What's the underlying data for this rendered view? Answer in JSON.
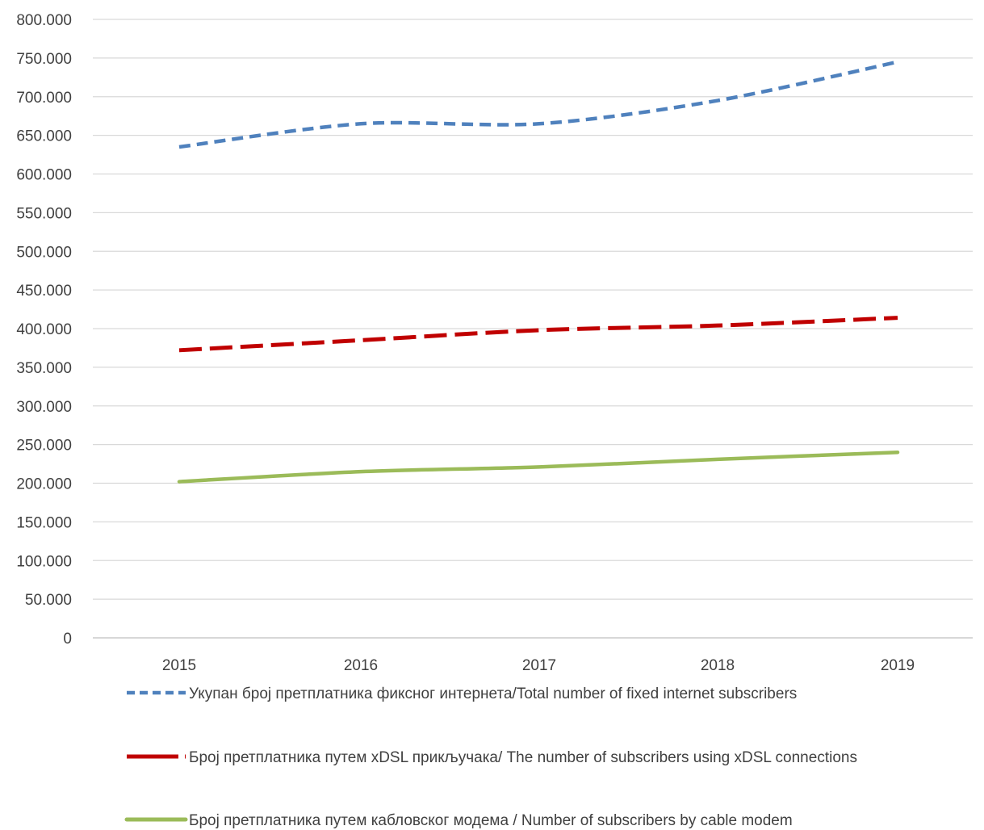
{
  "chart_data": {
    "type": "line",
    "categories": [
      "2015",
      "2016",
      "2017",
      "2018",
      "2019"
    ],
    "series": [
      {
        "name": "Укупан број претплатника фиксног интернета/Total number of fixed internet subscribers",
        "values": [
          635000,
          665000,
          665000,
          695000,
          745000
        ],
        "color": "#4f81bd",
        "line_style": "dashed"
      },
      {
        "name": "Број претплатника путем xDSL прикључака/ The number of subscribers using xDSL connections",
        "values": [
          372000,
          385000,
          398000,
          404000,
          414000
        ],
        "color": "#c00000",
        "line_style": "long-dashed"
      },
      {
        "name": "Број претплатника  путем кабловског модема / Number of subscribers by cable modem",
        "values": [
          202000,
          215000,
          221000,
          231000,
          240000
        ],
        "color": "#9bbb59",
        "line_style": "solid"
      }
    ],
    "y_ticks": [
      "0",
      "50.000",
      "100.000",
      "150.000",
      "200.000",
      "250.000",
      "300.000",
      "350.000",
      "400.000",
      "450.000",
      "500.000",
      "550.000",
      "600.000",
      "650.000",
      "700.000",
      "750.000",
      "800.000"
    ],
    "ylim": [
      0,
      800000
    ],
    "grid": true,
    "legend_position": "bottom"
  }
}
